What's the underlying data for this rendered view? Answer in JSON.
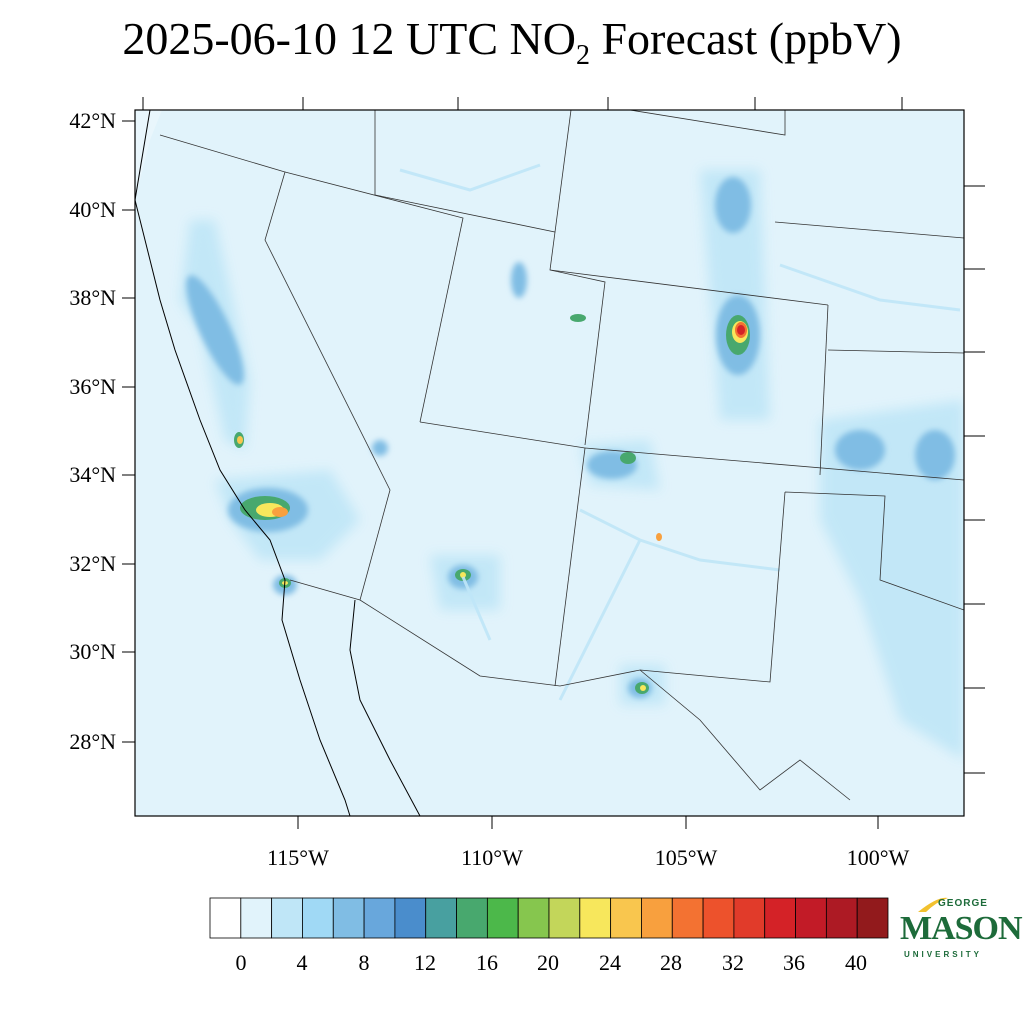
{
  "title": {
    "prefix": "2025-06-10 12 UTC NO",
    "subscript": "2",
    "suffix": " Forecast (ppbV)"
  },
  "map": {
    "lat_labels": [
      "42°N",
      "40°N",
      "38°N",
      "36°N",
      "34°N",
      "32°N",
      "30°N",
      "28°N"
    ],
    "lon_labels": [
      "115°W",
      "110°W",
      "105°W",
      "100°W"
    ]
  },
  "colorbar": {
    "labels": [
      "0",
      "4",
      "8",
      "12",
      "16",
      "20",
      "24",
      "28",
      "32",
      "36",
      "40"
    ],
    "colors": [
      "#ffffff",
      "#e1f3fb",
      "#bfe6f7",
      "#a0d9f5",
      "#80bde4",
      "#68a7dc",
      "#4a8dcc",
      "#48a0a0",
      "#48a86e",
      "#4cb84a",
      "#86c64e",
      "#c3d65a",
      "#f7e75c",
      "#f9c64e",
      "#f8a03e",
      "#f37232",
      "#ed522c",
      "#e13b2a",
      "#d42227",
      "#c21b27",
      "#ad1a24",
      "#921a1c"
    ]
  },
  "logo": {
    "line1": "GEORGE",
    "line2": "MASON",
    "line3": "UNIVERSITY"
  },
  "colors": {
    "background_field": "#e1f3fb",
    "border": "#000000"
  }
}
